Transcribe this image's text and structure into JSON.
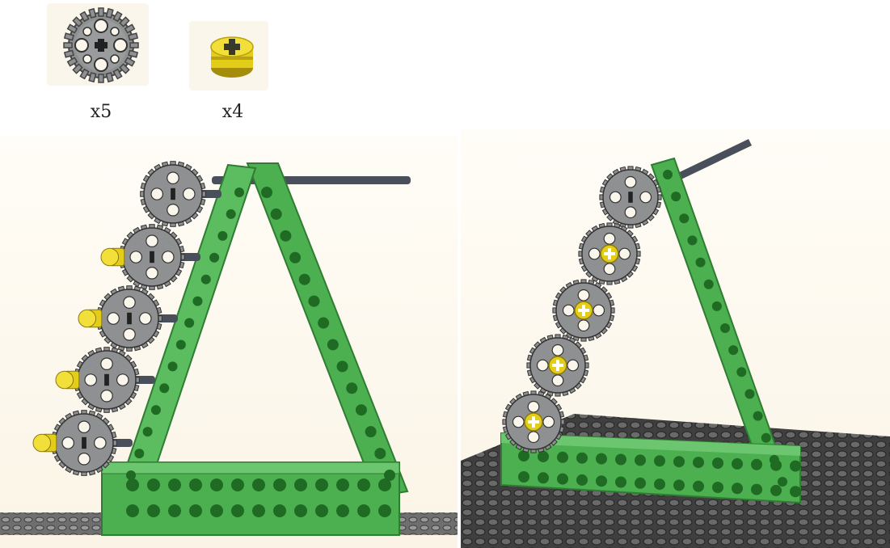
{
  "parts_list": {
    "items": [
      {
        "icon": "gear-24-tooth-icon",
        "color": "#8f9091",
        "quantity_label": "x5"
      },
      {
        "icon": "bush-icon",
        "color": "#e3cd18",
        "quantity_label": "x4"
      }
    ]
  },
  "colors": {
    "beam_green": "#4caf50",
    "beam_dark": "#2e7d32",
    "gear_gray": "#8f9091",
    "bush_yellow": "#e3cd18",
    "axle_dark": "#4a4f5c",
    "plate_gray": "#555555"
  }
}
